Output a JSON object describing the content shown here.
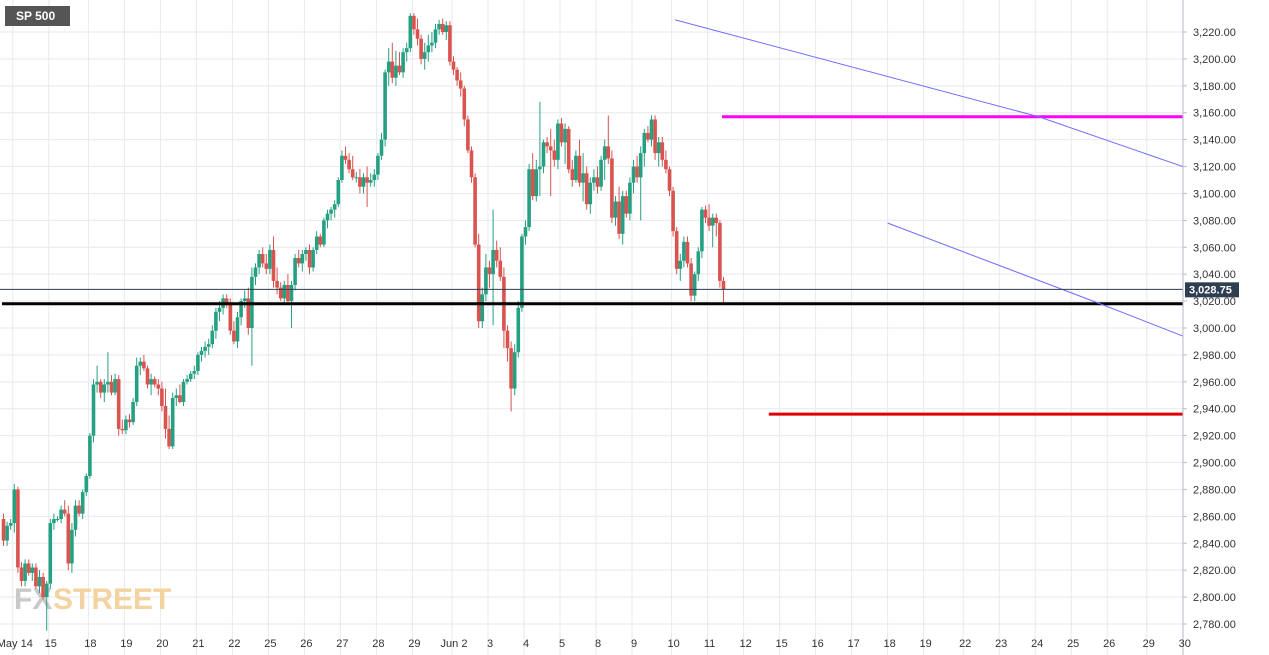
{
  "symbol": "SP 500",
  "last_price_label": "3,028.75",
  "watermark": {
    "part1": "FX",
    "part2": "STREET"
  },
  "colors": {
    "up": "#26a083",
    "down": "#d9534f",
    "grid": "#e6e9ee",
    "axis_text": "#333333",
    "trend": "#6d6dff",
    "resistance": "#ff00ff",
    "support": "#000000",
    "low_line": "#e00000",
    "last_price": "#2d3e50",
    "badge_bg": "#555555"
  },
  "chart_data": {
    "type": "candlestick",
    "title": "SP 500",
    "xlabel": "",
    "ylabel": "",
    "ylim": [
      2775,
      3243
    ],
    "grid": true,
    "y_ticks": [
      3220,
      3200,
      3180,
      3160,
      3140,
      3120,
      3100,
      3080,
      3060,
      3040,
      3020,
      3000,
      2980,
      2960,
      2940,
      2920,
      2900,
      2880,
      2860,
      2840,
      2820,
      2800,
      2780
    ],
    "y_tick_labels": [
      "3,220.00",
      "3,200.00",
      "3,180.00",
      "3,160.00",
      "3,140.00",
      "3,120.00",
      "3,100.00",
      "3,080.00",
      "3,060.00",
      "3,040.00",
      "3,020.00",
      "3,000.00",
      "2,980.00",
      "2,960.00",
      "2,940.00",
      "2,920.00",
      "2,900.00",
      "2,880.00",
      "2,860.00",
      "2,840.00",
      "2,820.00",
      "2,800.00",
      "2,780.00"
    ],
    "x_labels": [
      "May 14",
      "15",
      "18",
      "19",
      "20",
      "21",
      "22",
      "25",
      "26",
      "27",
      "28",
      "29",
      "Jun 2",
      "3",
      "4",
      "5",
      "8",
      "9",
      "10",
      "11",
      "12",
      "15",
      "16",
      "17",
      "18",
      "19",
      "22",
      "23",
      "24",
      "25",
      "26",
      "29",
      "30"
    ],
    "x_label_slots": [
      3,
      13,
      24,
      34,
      44,
      54,
      64,
      74,
      84,
      94,
      104,
      114,
      125,
      135,
      145,
      155,
      165,
      175,
      186,
      196,
      206,
      216,
      226,
      236,
      246,
      256,
      267,
      277,
      287,
      297,
      307,
      318,
      328
    ],
    "last_price": 3028.75,
    "candles_ohlc": [
      [
        2858,
        2862,
        2838,
        2842
      ],
      [
        2842,
        2856,
        2838,
        2853
      ],
      [
        2853,
        2858,
        2850,
        2855
      ],
      [
        2855,
        2884,
        2848,
        2880
      ],
      [
        2880,
        2882,
        2818,
        2822
      ],
      [
        2822,
        2826,
        2808,
        2812
      ],
      [
        2812,
        2828,
        2808,
        2825
      ],
      [
        2825,
        2828,
        2816,
        2818
      ],
      [
        2818,
        2825,
        2812,
        2822
      ],
      [
        2822,
        2825,
        2806,
        2808
      ],
      [
        2808,
        2820,
        2803,
        2815
      ],
      [
        2815,
        2818,
        2798,
        2800
      ],
      [
        2800,
        2812,
        2775,
        2810
      ],
      [
        2810,
        2858,
        2806,
        2855
      ],
      [
        2855,
        2862,
        2850,
        2858
      ],
      [
        2858,
        2860,
        2856,
        2858
      ],
      [
        2858,
        2868,
        2855,
        2865
      ],
      [
        2865,
        2872,
        2860,
        2862
      ],
      [
        2862,
        2868,
        2820,
        2825
      ],
      [
        2825,
        2855,
        2818,
        2850
      ],
      [
        2850,
        2872,
        2845,
        2868
      ],
      [
        2868,
        2872,
        2860,
        2862
      ],
      [
        2862,
        2880,
        2858,
        2878
      ],
      [
        2878,
        2892,
        2875,
        2890
      ],
      [
        2890,
        2922,
        2888,
        2920
      ],
      [
        2920,
        2962,
        2915,
        2958
      ],
      [
        2958,
        2972,
        2952,
        2960
      ],
      [
        2960,
        2962,
        2948,
        2952
      ],
      [
        2952,
        2962,
        2945,
        2958
      ],
      [
        2958,
        2982,
        2952,
        2960
      ],
      [
        2960,
        2965,
        2950,
        2952
      ],
      [
        2952,
        2966,
        2950,
        2962
      ],
      [
        2962,
        2965,
        2920,
        2925
      ],
      [
        2925,
        2932,
        2921,
        2924
      ],
      [
        2924,
        2935,
        2921,
        2932
      ],
      [
        2932,
        2936,
        2926,
        2930
      ],
      [
        2930,
        2948,
        2928,
        2945
      ],
      [
        2945,
        2978,
        2942,
        2972
      ],
      [
        2972,
        2978,
        2965,
        2975
      ],
      [
        2975,
        2980,
        2968,
        2970
      ],
      [
        2970,
        2972,
        2955,
        2958
      ],
      [
        2958,
        2966,
        2950,
        2962
      ],
      [
        2962,
        2964,
        2956,
        2958
      ],
      [
        2958,
        2962,
        2950,
        2955
      ],
      [
        2955,
        2960,
        2938,
        2942
      ],
      [
        2942,
        2955,
        2918,
        2925
      ],
      [
        2925,
        2935,
        2910,
        2912
      ],
      [
        2912,
        2952,
        2910,
        2948
      ],
      [
        2948,
        2955,
        2942,
        2950
      ],
      [
        2950,
        2958,
        2944,
        2945
      ],
      [
        2945,
        2962,
        2942,
        2960
      ],
      [
        2960,
        2965,
        2958,
        2962
      ],
      [
        2962,
        2968,
        2960,
        2966
      ],
      [
        2966,
        2972,
        2962,
        2968
      ],
      [
        2968,
        2982,
        2965,
        2980
      ],
      [
        2980,
        2986,
        2975,
        2983
      ],
      [
        2983,
        2990,
        2978,
        2986
      ],
      [
        2986,
        2992,
        2980,
        2988
      ],
      [
        2988,
        3002,
        2985,
        2998
      ],
      [
        2998,
        3015,
        2992,
        3012
      ],
      [
        3012,
        3020,
        3005,
        3015
      ],
      [
        3015,
        3025,
        3010,
        3022
      ],
      [
        3022,
        3025,
        3015,
        3018
      ],
      [
        3018,
        3022,
        2995,
        2998
      ],
      [
        2998,
        3005,
        2988,
        2990
      ],
      [
        2990,
        3012,
        2985,
        3008
      ],
      [
        3008,
        3022,
        3002,
        3020
      ],
      [
        3020,
        3028,
        3015,
        3022
      ],
      [
        3022,
        3030,
        2995,
        3000
      ],
      [
        3000,
        3045,
        2972,
        3038
      ],
      [
        3038,
        3048,
        3032,
        3045
      ],
      [
        3045,
        3058,
        3040,
        3055
      ],
      [
        3055,
        3060,
        3045,
        3048
      ],
      [
        3048,
        3055,
        3040,
        3044
      ],
      [
        3044,
        3062,
        3040,
        3058
      ],
      [
        3058,
        3068,
        3030,
        3035
      ],
      [
        3035,
        3045,
        3025,
        3030
      ],
      [
        3030,
        3034,
        3020,
        3022
      ],
      [
        3022,
        3035,
        3018,
        3032
      ],
      [
        3032,
        3040,
        3018,
        3020
      ],
      [
        3020,
        3035,
        3000,
        3032
      ],
      [
        3032,
        3055,
        3028,
        3052
      ],
      [
        3052,
        3058,
        3045,
        3048
      ],
      [
        3048,
        3058,
        3042,
        3055
      ],
      [
        3055,
        3060,
        3050,
        3058
      ],
      [
        3058,
        3062,
        3040,
        3045
      ],
      [
        3045,
        3060,
        3042,
        3058
      ],
      [
        3058,
        3072,
        3055,
        3068
      ],
      [
        3068,
        3070,
        3060,
        3062
      ],
      [
        3062,
        3082,
        3060,
        3080
      ],
      [
        3080,
        3088,
        3074,
        3085
      ],
      [
        3085,
        3090,
        3080,
        3088
      ],
      [
        3088,
        3095,
        3082,
        3092
      ],
      [
        3092,
        3112,
        3090,
        3110
      ],
      [
        3110,
        3132,
        3108,
        3128
      ],
      [
        3128,
        3135,
        3122,
        3125
      ],
      [
        3125,
        3130,
        3115,
        3118
      ],
      [
        3118,
        3128,
        3110,
        3112
      ],
      [
        3112,
        3116,
        3108,
        3112
      ],
      [
        3112,
        3118,
        3100,
        3105
      ],
      [
        3105,
        3115,
        3100,
        3112
      ],
      [
        3112,
        3120,
        3090,
        3108
      ],
      [
        3108,
        3115,
        3105,
        3110
      ],
      [
        3110,
        3118,
        3105,
        3114
      ],
      [
        3114,
        3130,
        3110,
        3128
      ],
      [
        3128,
        3145,
        3125,
        3140
      ],
      [
        3140,
        3192,
        3135,
        3190
      ],
      [
        3190,
        3208,
        3180,
        3198
      ],
      [
        3198,
        3212,
        3182,
        3186
      ],
      [
        3186,
        3206,
        3180,
        3195
      ],
      [
        3195,
        3205,
        3188,
        3190
      ],
      [
        3190,
        3208,
        3186,
        3205
      ],
      [
        3205,
        3212,
        3198,
        3208
      ],
      [
        3208,
        3234,
        3205,
        3232
      ],
      [
        3232,
        3234,
        3218,
        3222
      ],
      [
        3222,
        3230,
        3210,
        3215
      ],
      [
        3215,
        3218,
        3196,
        3200
      ],
      [
        3200,
        3212,
        3192,
        3205
      ],
      [
        3205,
        3218,
        3198,
        3210
      ],
      [
        3210,
        3220,
        3205,
        3212
      ],
      [
        3212,
        3226,
        3208,
        3222
      ],
      [
        3222,
        3229,
        3218,
        3226
      ],
      [
        3226,
        3230,
        3218,
        3220
      ],
      [
        3220,
        3228,
        3214,
        3225
      ],
      [
        3225,
        3228,
        3195,
        3198
      ],
      [
        3198,
        3202,
        3188,
        3192
      ],
      [
        3192,
        3194,
        3180,
        3184
      ],
      [
        3184,
        3190,
        3172,
        3178
      ],
      [
        3178,
        3180,
        3150,
        3155
      ],
      [
        3155,
        3158,
        3130,
        3132
      ],
      [
        3132,
        3135,
        3108,
        3112
      ],
      [
        3112,
        3115,
        3060,
        3062
      ],
      [
        3062,
        3070,
        3000,
        3005
      ],
      [
        3005,
        3030,
        3000,
        3025
      ],
      [
        3025,
        3055,
        3020,
        3045
      ],
      [
        3045,
        3050,
        3030,
        3040
      ],
      [
        3040,
        3088,
        3002,
        3058
      ],
      [
        3058,
        3065,
        3045,
        3050
      ],
      [
        3050,
        3060,
        3035,
        3038
      ],
      [
        3038,
        3045,
        2985,
        2998
      ],
      [
        2998,
        3002,
        2975,
        2985
      ],
      [
        2985,
        2990,
        2938,
        2955
      ],
      [
        2955,
        2988,
        2950,
        2982
      ],
      [
        2982,
        3020,
        2978,
        3015
      ],
      [
        3015,
        3070,
        3012,
        3068
      ],
      [
        3068,
        3080,
        3062,
        3075
      ],
      [
        3075,
        3122,
        3072,
        3118
      ],
      [
        3118,
        3130,
        3095,
        3098
      ],
      [
        3098,
        3125,
        3094,
        3118
      ],
      [
        3118,
        3168,
        3098,
        3120
      ],
      [
        3120,
        3140,
        3115,
        3138
      ],
      [
        3138,
        3142,
        3130,
        3135
      ],
      [
        3135,
        3148,
        3098,
        3132
      ],
      [
        3132,
        3140,
        3120,
        3125
      ],
      [
        3125,
        3155,
        3118,
        3152
      ],
      [
        3152,
        3156,
        3135,
        3138
      ],
      [
        3138,
        3152,
        3122,
        3148
      ],
      [
        3148,
        3150,
        3115,
        3118
      ],
      [
        3118,
        3125,
        3105,
        3110
      ],
      [
        3110,
        3132,
        3108,
        3128
      ],
      [
        3128,
        3140,
        3105,
        3108
      ],
      [
        3108,
        3130,
        3094,
        3115
      ],
      [
        3115,
        3120,
        3088,
        3092
      ],
      [
        3092,
        3112,
        3085,
        3108
      ],
      [
        3108,
        3118,
        3102,
        3112
      ],
      [
        3112,
        3120,
        3100,
        3105
      ],
      [
        3105,
        3128,
        3102,
        3125
      ],
      [
        3125,
        3140,
        3110,
        3135
      ],
      [
        3135,
        3158,
        3122,
        3126
      ],
      [
        3126,
        3132,
        3078,
        3082
      ],
      [
        3082,
        3098,
        3076,
        3094
      ],
      [
        3094,
        3105,
        3066,
        3070
      ],
      [
        3070,
        3102,
        3062,
        3098
      ],
      [
        3098,
        3102,
        3082,
        3085
      ],
      [
        3085,
        3112,
        3080,
        3108
      ],
      [
        3108,
        3125,
        3100,
        3120
      ],
      [
        3120,
        3128,
        3108,
        3112
      ],
      [
        3112,
        3135,
        3080,
        3130
      ],
      [
        3130,
        3148,
        3120,
        3145
      ],
      [
        3145,
        3150,
        3138,
        3140
      ],
      [
        3140,
        3158,
        3135,
        3155
      ],
      [
        3155,
        3158,
        3125,
        3130
      ],
      [
        3130,
        3142,
        3120,
        3138
      ],
      [
        3138,
        3142,
        3120,
        3125
      ],
      [
        3125,
        3132,
        3115,
        3118
      ],
      [
        3118,
        3120,
        3098,
        3102
      ],
      [
        3102,
        3105,
        3068,
        3072
      ],
      [
        3072,
        3075,
        3040,
        3044
      ],
      [
        3044,
        3055,
        3035,
        3050
      ],
      [
        3050,
        3068,
        3045,
        3064
      ],
      [
        3064,
        3068,
        3045,
        3048
      ],
      [
        3048,
        3052,
        3020,
        3024
      ],
      [
        3024,
        3042,
        3020,
        3040
      ],
      [
        3040,
        3060,
        3035,
        3057
      ],
      [
        3057,
        3090,
        3052,
        3088
      ],
      [
        3088,
        3091,
        3078,
        3082
      ],
      [
        3082,
        3092,
        3072,
        3076
      ],
      [
        3076,
        3085,
        3060,
        3082
      ],
      [
        3082,
        3085,
        3068,
        3078
      ],
      [
        3078,
        3080,
        3030,
        3035
      ],
      [
        3035,
        3038,
        3018,
        3028.75
      ]
    ],
    "annotations": [
      {
        "label": "resistance",
        "type": "horizontal",
        "y": 3157,
        "from_slot": 200,
        "to_slot": "end",
        "color": "#ff00ff"
      },
      {
        "label": "support",
        "type": "horizontal",
        "y": 3018,
        "from_slot": 0,
        "to_slot": "end",
        "color": "#000000"
      },
      {
        "label": "june-low",
        "type": "horizontal",
        "y": 2936,
        "from_slot": 213,
        "to_slot": "end",
        "color": "#e00000"
      },
      {
        "label": "upper-trendline",
        "type": "line",
        "points": [
          [
            187,
            3229
          ],
          [
            288,
            3157
          ],
          [
            328,
            3120
          ]
        ],
        "color": "#6d6dff"
      },
      {
        "label": "lower-trendline",
        "type": "line",
        "points": [
          [
            246,
            3078
          ],
          [
            307,
            3016
          ],
          [
            328,
            2994
          ]
        ],
        "color": "#6d6dff"
      }
    ]
  }
}
